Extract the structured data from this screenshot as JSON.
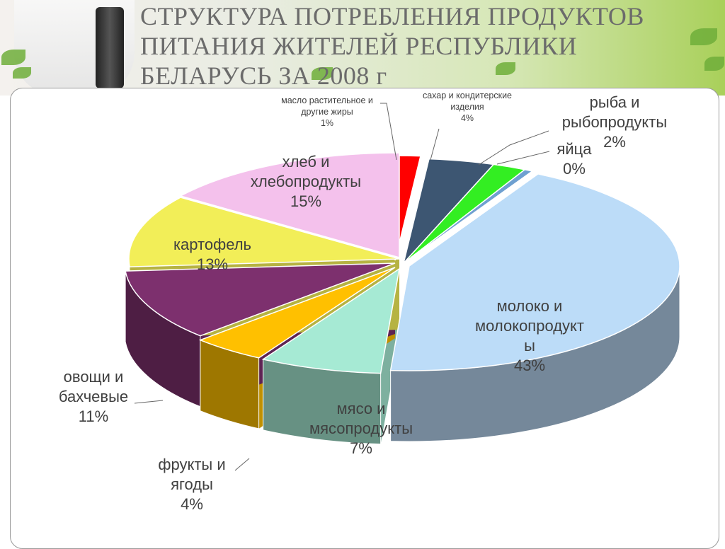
{
  "title": "СТРУКТУРА ПОТРЕБЛЕНИЯ ПРОДУКТОВ ПИТАНИЯ ЖИТЕЛЕЙ РЕСПУБЛИКИ БЕЛАРУСЬ ЗА 2008 г",
  "chart_data": {
    "type": "pie",
    "style": "3d-exploded-free",
    "slices": [
      {
        "label": "масло растительное и другие жиры",
        "value": 1,
        "display": "1%",
        "color": "#ff0000"
      },
      {
        "label": "сахар и кондитерские изделия",
        "value": 4,
        "display": "4%",
        "color": "#3d5672"
      },
      {
        "label": "рыба и рыбопродукты",
        "value": 2,
        "display": "2%",
        "color": "#33ee22"
      },
      {
        "label": "яйца",
        "value": 0,
        "display": "0%",
        "color": "#6fa0d0"
      },
      {
        "label": "молоко и молокопродукты",
        "value": 43,
        "display": "43%",
        "color": "#bcdcf8"
      },
      {
        "label": "мясо и мясопродукты",
        "value": 7,
        "display": "7%",
        "color": "#a6ead4"
      },
      {
        "label": "фрукты и ягоды",
        "value": 4,
        "display": "4%",
        "color": "#ffc000"
      },
      {
        "label": "овощи и бахчевые",
        "value": 11,
        "display": "11%",
        "color": "#7d306e"
      },
      {
        "label": "картофель",
        "value": 13,
        "display": "13%",
        "color": "#f2ee58"
      },
      {
        "label": "хлеб и хлебопродукты",
        "value": 15,
        "display": "15%",
        "color": "#f4c1ec"
      }
    ]
  },
  "labels": [
    {
      "lines": [
        "масло растительное и",
        "другие жиры",
        "1%"
      ]
    },
    {
      "lines": [
        "сахар и кондитерские",
        "изделия",
        "4%"
      ]
    },
    {
      "lines": [
        "рыба и",
        "рыбопродукты",
        "2%"
      ]
    },
    {
      "lines": [
        "яйца",
        "0%"
      ]
    },
    {
      "lines": [
        "молоко и",
        "молокопродукт",
        "ы",
        "43%"
      ]
    },
    {
      "lines": [
        "мясо и",
        "мясопродукты",
        "7%"
      ]
    },
    {
      "lines": [
        "фрукты  и",
        "ягоды",
        "4%"
      ]
    },
    {
      "lines": [
        "овощи и",
        "бахчевые",
        "11%"
      ]
    },
    {
      "lines": [
        "картофель",
        "13%"
      ]
    },
    {
      "lines": [
        "хлеб и",
        "хлебопродукты",
        "15%"
      ]
    }
  ]
}
